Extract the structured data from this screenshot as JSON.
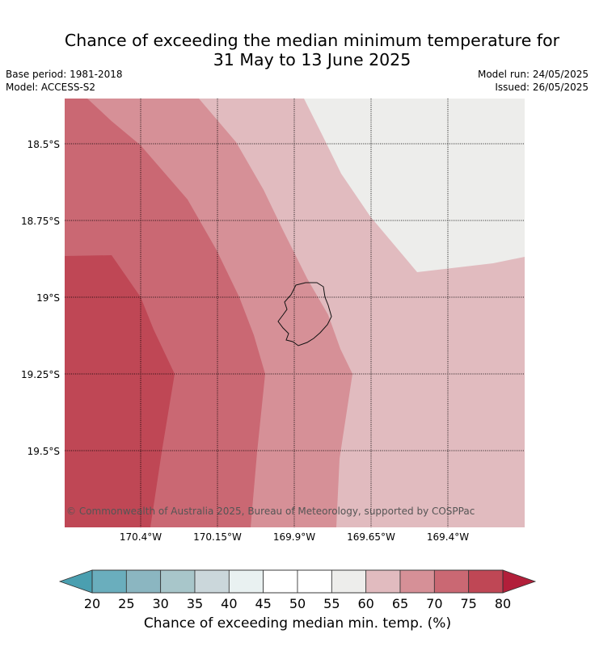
{
  "title_line1": "Chance of exceeding the median minimum temperature for",
  "title_line2": "31 May to 13 June 2025",
  "meta": {
    "base_period": "Base period: 1981-2018",
    "model": "Model: ACCESS-S2",
    "model_run": "Model run: 24/05/2025",
    "issued": "Issued: 26/05/2025"
  },
  "map": {
    "lat_labels": [
      "18.5°S",
      "18.75°S",
      "19°S",
      "19.25°S",
      "19.5°S"
    ],
    "lon_labels": [
      "170.4°W",
      "170.15°W",
      "169.9°W",
      "169.65°W",
      "169.4°W"
    ],
    "copyright": "© Commonwealth of Australia 2025, Bureau of Meteorology, supported by COSPPac",
    "zone_colors": {
      "55-60": "#ededeb",
      "60-65": "#e1bbbf",
      "65-70": "#d69097",
      "70-75": "#ca6873",
      "75-80": "#bf4755"
    }
  },
  "colorbar": {
    "ticks": [
      "20",
      "25",
      "30",
      "35",
      "40",
      "45",
      "50",
      "55",
      "60",
      "65",
      "70",
      "75",
      "80"
    ],
    "colors": [
      "#6aaebd",
      "#8bb6c1",
      "#a8c6ca",
      "#cbd7db",
      "#e9f1f1",
      "#ffffff",
      "#ffffff",
      "#ededeb",
      "#e1bbbf",
      "#d69097",
      "#ca6873",
      "#bf4755"
    ],
    "under_color": "#4a9fb0",
    "over_color": "#b21f3a",
    "label": "Chance of exceeding median min. temp. (%)"
  }
}
